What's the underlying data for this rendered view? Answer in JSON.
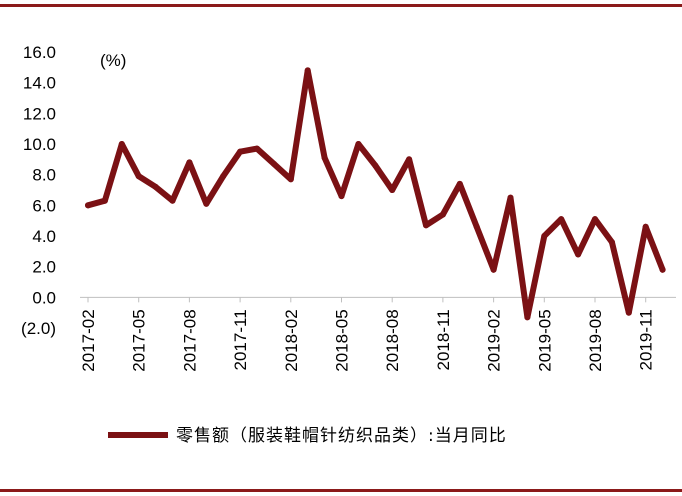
{
  "colors": {
    "line": "#7b1114",
    "frame": "#8b1a1a",
    "negative": "#ff0000",
    "axis": "#bfbfbf"
  },
  "chart_data": {
    "type": "line",
    "unit_label": "(%)",
    "x": [
      "2017-02",
      "2017-03",
      "2017-04",
      "2017-05",
      "2017-06",
      "2017-07",
      "2017-08",
      "2017-09",
      "2017-10",
      "2017-11",
      "2017-12",
      "2018-01",
      "2018-02",
      "2018-03",
      "2018-04",
      "2018-05",
      "2018-06",
      "2018-07",
      "2018-08",
      "2018-09",
      "2018-10",
      "2018-11",
      "2018-12",
      "2019-01",
      "2019-02",
      "2019-03",
      "2019-04",
      "2019-05",
      "2019-06",
      "2019-07",
      "2019-08",
      "2019-09",
      "2019-10",
      "2019-11",
      "2019-12"
    ],
    "x_tick_labels": [
      "2017-02",
      "2017-05",
      "2017-08",
      "2017-11",
      "2018-02",
      "2018-05",
      "2018-08",
      "2018-11",
      "2019-02",
      "2019-05",
      "2019-08",
      "2019-11"
    ],
    "series": [
      {
        "name": "零售额（服装鞋帽针纺织品类）:当月同比",
        "values": [
          6.0,
          6.3,
          10.0,
          7.9,
          7.2,
          6.3,
          8.8,
          6.1,
          7.9,
          9.5,
          9.7,
          8.7,
          7.7,
          14.8,
          9.1,
          6.6,
          10.0,
          8.6,
          7.0,
          9.0,
          4.7,
          5.4,
          7.4,
          4.6,
          1.8,
          6.5,
          -1.3,
          4.0,
          5.1,
          2.8,
          5.1,
          3.6,
          -1.0,
          4.6,
          1.8
        ]
      }
    ],
    "y_ticks": [
      16.0,
      14.0,
      12.0,
      10.0,
      8.0,
      6.0,
      4.0,
      2.0,
      0.0,
      -2.0
    ],
    "y_tick_labels": [
      "16.0",
      "14.0",
      "12.0",
      "10.0",
      "8.0",
      "6.0",
      "4.0",
      "2.0",
      "0.0",
      "(2.0)"
    ],
    "ylim": [
      -2.0,
      16.0
    ],
    "legend": {
      "position": "bottom"
    },
    "grid": false
  }
}
